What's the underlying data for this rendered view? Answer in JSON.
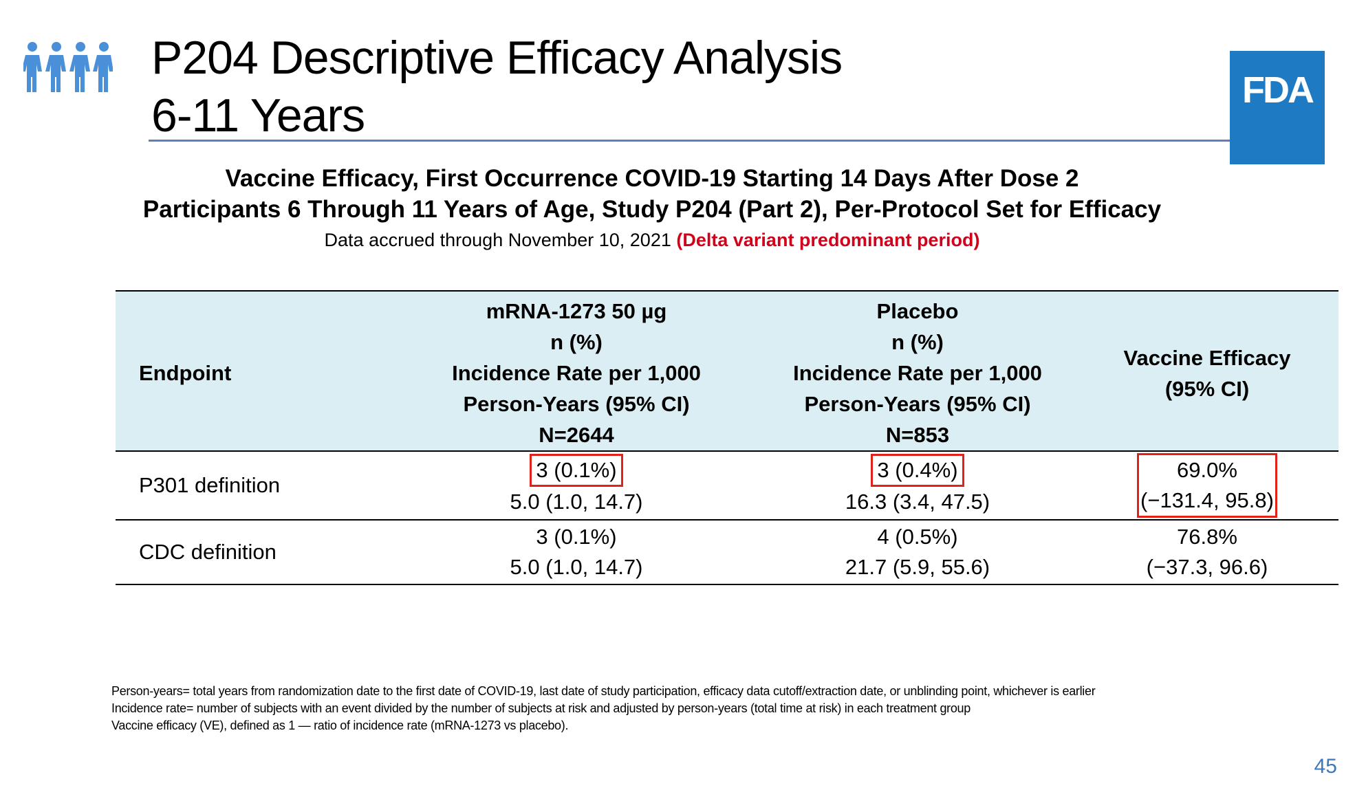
{
  "header": {
    "title_line1": "P204 Descriptive Efficacy Analysis",
    "title_line2": "6-11 Years",
    "logo_text": "FDA",
    "icon": "children-icon"
  },
  "subtitle": {
    "line1": "Vaccine Efficacy, First Occurrence COVID-19 Starting 14 Days After Dose 2",
    "line2": "Participants 6 Through 11 Years of Age, Study P204 (Part 2), Per-Protocol Set for Efficacy",
    "line3_prefix": "Data accrued through November 10, 2021 ",
    "line3_highlight": "(Delta variant predominant period)"
  },
  "table": {
    "headers": {
      "endpoint": "Endpoint",
      "vaccine": [
        "mRNA-1273  50 µg",
        "n (%)",
        "Incidence  Rate per 1,000",
        "Person-Years (95% CI)",
        "N=2644"
      ],
      "placebo": [
        "Placebo",
        "n (%)",
        "Incidence  Rate per 1,000",
        "Person-Years (95% CI)",
        "N=853"
      ],
      "efficacy": [
        "Vaccine  Efficacy",
        "(95% CI)"
      ]
    },
    "rows": [
      {
        "endpoint": "P301 definition",
        "vaccine_n": "3 (0.1%)",
        "vaccine_rate": "5.0 (1.0, 14.7)",
        "placebo_n": "3 (0.4%)",
        "placebo_rate": "16.3 (3.4, 47.5)",
        "ve": "69.0%",
        "ve_ci": "(−131.4, 95.8)"
      },
      {
        "endpoint": "CDC definition",
        "vaccine_n": "3 (0.1%)",
        "vaccine_rate": "5.0 (1.0, 14.7)",
        "placebo_n": "4 (0.5%)",
        "placebo_rate": "21.7 (5.9, 55.6)",
        "ve": "76.8%",
        "ve_ci": "(−37.3, 96.6)"
      }
    ]
  },
  "footnotes": [
    "Person-years= total years from randomization date to the first date of COVID-19, last date of study participation, efficacy data cutoff/extraction date, or unblinding point, whichever is earlier",
    "Incidence rate= number of subjects with an event divided by the number of subjects at risk and adjusted by person-years (total time at risk) in each treatment group",
    "Vaccine efficacy (VE), defined as 1 — ratio of incidence rate (mRNA-1273 vs placebo)."
  ],
  "page_number": "45",
  "colors": {
    "accent_blue": "#1e7bc3",
    "header_bg": "#dbeef4",
    "highlight_red": "#d0021b",
    "box_red": "#e0221a",
    "icon_blue": "#4a90d9"
  }
}
